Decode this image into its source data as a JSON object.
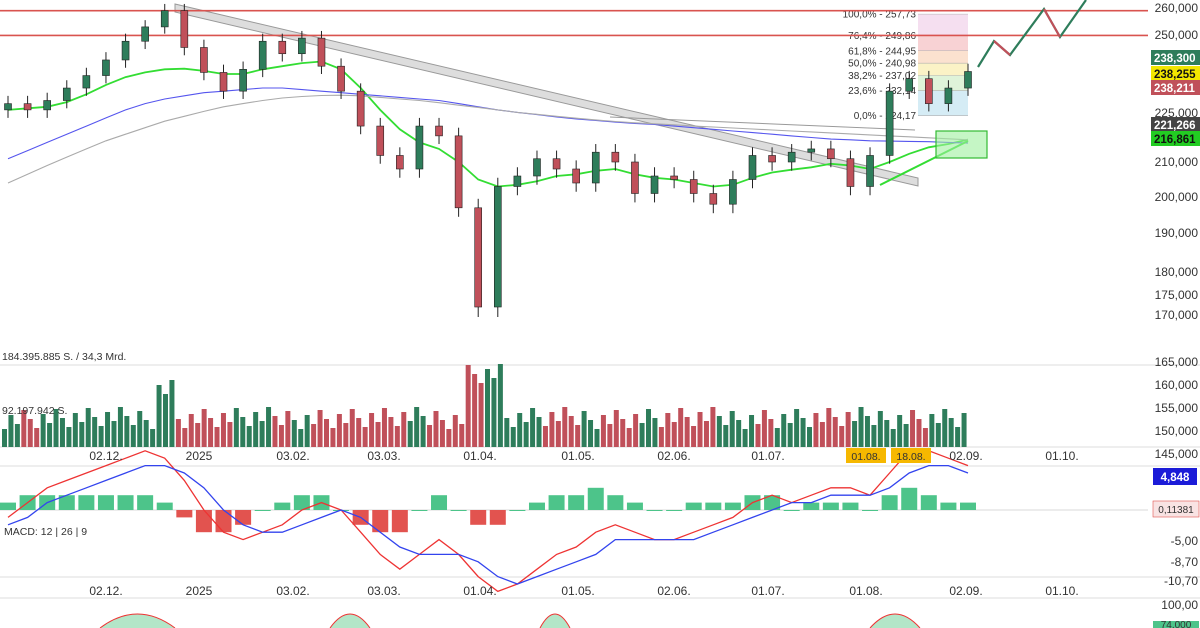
{
  "chart_data": {
    "type": "candlestick",
    "price_axis": {
      "ticks": [
        260000,
        250000,
        225000,
        210000,
        200000,
        190000,
        180000,
        175000,
        170000
      ],
      "labels": [
        "260,000",
        "250,000",
        "225,000",
        "210,000",
        "200,000",
        "190,000",
        "180,000",
        "175,000",
        "170,000"
      ]
    },
    "volume_axis": {
      "ticks": [
        165000,
        160000,
        155000,
        150000,
        145000
      ],
      "labels": [
        "165,000",
        "160,000",
        "155,000",
        "150,000",
        "145,000"
      ],
      "volume_label": "184.395.885 S. / 34,3 Mrd.",
      "volume_mid_label": "92.197.942 S."
    },
    "macd_axis": {
      "ticks": [
        -5,
        -8.7,
        -10.7
      ],
      "labels": [
        "-5,00",
        "-8,70",
        "-10,70"
      ],
      "title": "MACD: 12 | 26 | 9",
      "current_badge": "4,848",
      "hist_badge": "0,11381"
    },
    "lower_axis": {
      "labels": [
        "100,00"
      ],
      "badge": "74,000"
    },
    "x_axis": {
      "labels": [
        "02.12.",
        "2025",
        "03.02.",
        "03.03.",
        "01.04.",
        "01.05.",
        "02.06.",
        "01.07.",
        "01.08.",
        "02.09.",
        "01.10."
      ],
      "date_badges": [
        "01.08.",
        "18.08."
      ]
    },
    "price_badges": [
      {
        "text": "238,300",
        "color": "#2e7d5b"
      },
      {
        "text": "238,255",
        "color": "#f2e600"
      },
      {
        "text": "238,211",
        "color": "#c0505a"
      },
      {
        "text": "221,266",
        "color": "#444444"
      },
      {
        "text": "216,861",
        "color": "#22cc22"
      }
    ],
    "fibonacci": [
      {
        "label": "100,0% - 257,73",
        "price": 257730
      },
      {
        "label": "76,4% - 249,86",
        "price": 249860
      },
      {
        "label": "61,8% - 244,95",
        "price": 244950
      },
      {
        "label": "50,0% - 240,98",
        "price": 240980
      },
      {
        "label": "38,2% - 237,02",
        "price": 237020
      },
      {
        "label": "23,6% - 232,14",
        "price": 232140
      },
      {
        "label": "0,0% - 224,17",
        "price": 224170
      }
    ],
    "horizontal_lines": [
      259000,
      249860
    ],
    "series": [
      {
        "name": "Close",
        "values": [
          228000,
          226000,
          229000,
          233000,
          237000,
          242000,
          248000,
          253000,
          259000,
          246000,
          238000,
          232000,
          239000,
          248000,
          244000,
          249000,
          240000,
          232000,
          221000,
          212000,
          208000,
          221000,
          218000,
          197000,
          172000,
          203000,
          206000,
          211000,
          208000,
          204000,
          213000,
          210000,
          201000,
          206000,
          205000,
          201000,
          198000,
          205000,
          212000,
          210000,
          213000,
          214000,
          211000,
          203000,
          212000,
          232000,
          236000,
          228000,
          233000,
          238300
        ]
      },
      {
        "name": "SMA fast",
        "values": [
          226000,
          226500,
          227000,
          228500,
          231000,
          234000,
          236500,
          238000,
          239000,
          239200,
          238500,
          237500,
          237500,
          239000,
          240000,
          241000,
          241500,
          239000,
          233000,
          226000,
          220000,
          216000,
          214000,
          210000,
          205000,
          203000,
          203500,
          204500,
          206000,
          206500,
          207500,
          208000,
          206500,
          205500,
          205000,
          204000,
          203000,
          203500,
          205500,
          207000,
          207800,
          208500,
          209500,
          209000,
          208000,
          210000,
          212500,
          214500,
          215500,
          216861
        ]
      },
      {
        "name": "SMA mid",
        "values": [
          211000,
          213500,
          216000,
          218500,
          221000,
          223500,
          226000,
          228000,
          229500,
          230500,
          231500,
          232000,
          232500,
          233000,
          233000,
          232500,
          232000,
          231500,
          231000,
          230500,
          230000,
          229500,
          229000,
          228000,
          227000,
          226000,
          225200,
          224500,
          223800,
          223200,
          222700,
          222200,
          221800,
          221500,
          221000,
          220500,
          220000,
          219500,
          219000,
          218500,
          218000,
          217500,
          217000,
          216800,
          216500,
          216400,
          216300,
          216200,
          216000,
          215800
        ]
      },
      {
        "name": "SMA slow",
        "values": [
          204000,
          206500,
          209000,
          211500,
          214000,
          216500,
          218500,
          220500,
          222500,
          224000,
          225500,
          227000,
          228000,
          229000,
          229800,
          230300,
          230600,
          230700,
          230500,
          230000,
          229500,
          229000,
          228300,
          227500,
          226800,
          226000,
          225200,
          224600,
          224000,
          223400,
          222900,
          222400,
          222000,
          221700,
          221400,
          221000,
          220700,
          220400,
          220100,
          219800,
          219500,
          219200,
          218900,
          218600,
          218300,
          218000,
          217700,
          217400,
          217100,
          216800
        ]
      }
    ],
    "macd": {
      "macd_values": [
        -1,
        1,
        3,
        4,
        5,
        6,
        7,
        8,
        7,
        4,
        0,
        -3,
        -4,
        -3,
        -2,
        0,
        1,
        0,
        -3,
        -6,
        -8,
        -6,
        -4,
        -6,
        -9,
        -11,
        -10,
        -8,
        -6,
        -5,
        -3,
        -2,
        -3,
        -4,
        -4,
        -3,
        -2,
        -1,
        1,
        2,
        1,
        2,
        3,
        3,
        2,
        5,
        8,
        8,
        7,
        6
      ],
      "signal_values": [
        -2,
        -1,
        1,
        2,
        3,
        4,
        5,
        6,
        6,
        5,
        3,
        0,
        -2,
        -3,
        -3,
        -2,
        -1,
        0,
        -1,
        -3,
        -5,
        -6,
        -6,
        -6,
        -7,
        -9,
        -10,
        -9,
        -8,
        -7,
        -6,
        -4,
        -4,
        -4,
        -4,
        -4,
        -3,
        -2,
        -1,
        0,
        1,
        1,
        2,
        2,
        2,
        3,
        5,
        6,
        6,
        5
      ],
      "histogram": [
        1,
        2,
        2,
        2,
        2,
        2,
        2,
        2,
        1,
        -1,
        -3,
        -3,
        -2,
        0,
        1,
        2,
        2,
        0,
        -2,
        -3,
        -3,
        0,
        2,
        0,
        -2,
        -2,
        0,
        1,
        2,
        2,
        3,
        2,
        1,
        0,
        0,
        1,
        1,
        1,
        2,
        2,
        0,
        1,
        1,
        1,
        0,
        2,
        3,
        2,
        1,
        1
      ]
    }
  }
}
